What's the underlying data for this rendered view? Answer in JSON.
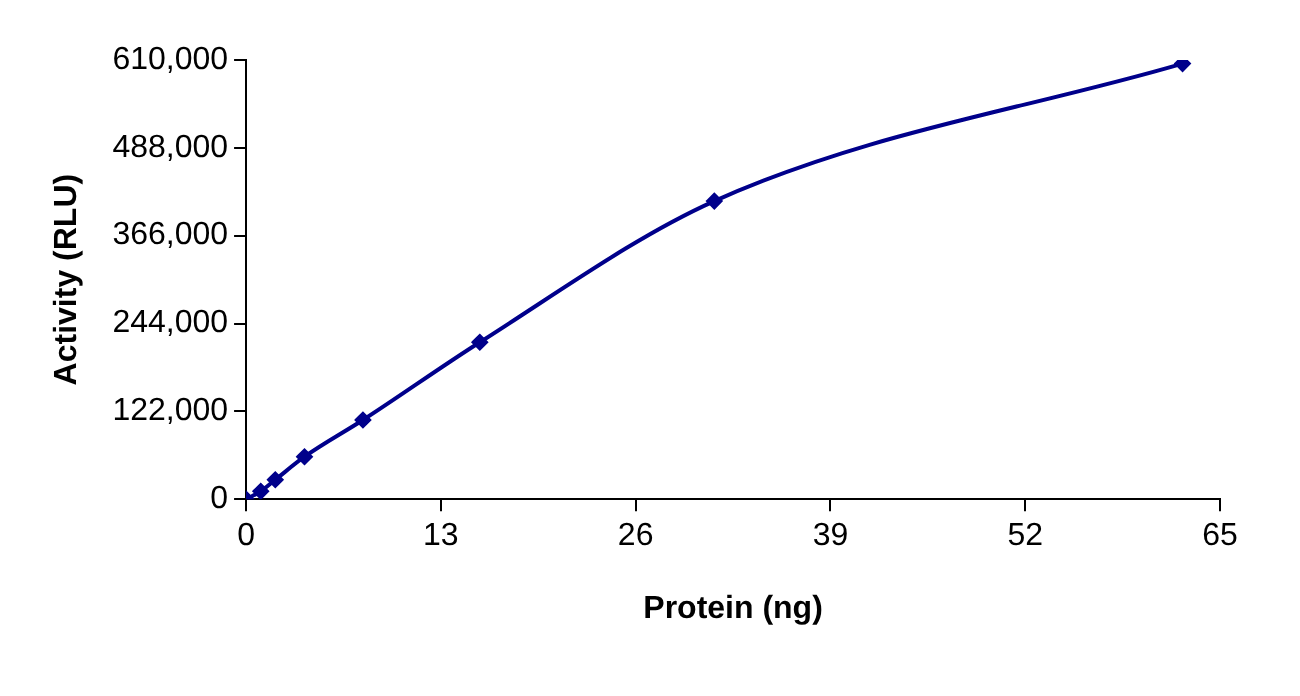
{
  "chart_data": {
    "type": "line",
    "xlabel": "Protein (ng)",
    "ylabel": "Activity (RLU)",
    "x": [
      0,
      0.98,
      1.95,
      3.9,
      7.8,
      15.6,
      31.25,
      62.5
    ],
    "series": [
      {
        "color": "#00008b",
        "values": [
          0,
          11000,
          27000,
          59000,
          110000,
          218000,
          414000,
          605000
        ]
      }
    ],
    "xlim": [
      0,
      65
    ],
    "xticks": [
      0,
      13,
      26,
      39,
      52,
      65
    ],
    "ylim": [
      0,
      610000
    ],
    "yticks": [
      {
        "value": 0,
        "label": "0"
      },
      {
        "value": 122000,
        "label": "122,000"
      },
      {
        "value": 244000,
        "label": "244,000"
      },
      {
        "value": 366000,
        "label": "366,000"
      },
      {
        "value": 488000,
        "label": "488,000"
      },
      {
        "value": 610000,
        "label": "610,000"
      }
    ],
    "grid": false,
    "legend": false,
    "marker": "diamond",
    "line_style": "solid"
  }
}
